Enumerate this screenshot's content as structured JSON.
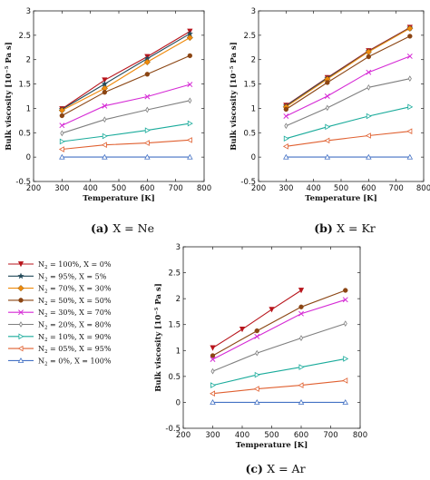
{
  "chart_data": [
    {
      "type": "line",
      "caption_letter": "(a)",
      "caption_text": "X = Ne",
      "xlabel": "Temperature [K]",
      "ylabel": "Bulk viscosity [10⁻⁵ Pa s]",
      "xlim": [
        200,
        800
      ],
      "ylim": [
        -0.5,
        3
      ],
      "xticks": [
        200,
        300,
        400,
        500,
        600,
        700,
        800
      ],
      "yticks": [
        -0.5,
        0,
        0.5,
        1,
        1.5,
        2,
        2.5,
        3
      ],
      "x": [
        300,
        450,
        600,
        750
      ],
      "series": [
        {
          "series_index": 0,
          "values": [
            0.99,
            1.58,
            2.06,
            2.58
          ]
        },
        {
          "series_index": 1,
          "values": [
            0.98,
            1.5,
            2.02,
            2.53
          ]
        },
        {
          "series_index": 2,
          "values": [
            0.96,
            1.41,
            1.95,
            2.45
          ]
        },
        {
          "series_index": 3,
          "values": [
            0.85,
            1.33,
            1.7,
            2.08
          ]
        },
        {
          "series_index": 4,
          "values": [
            0.65,
            1.05,
            1.24,
            1.49
          ]
        },
        {
          "series_index": 5,
          "values": [
            0.49,
            0.77,
            0.97,
            1.16
          ]
        },
        {
          "series_index": 6,
          "values": [
            0.32,
            0.43,
            0.55,
            0.69
          ]
        },
        {
          "series_index": 7,
          "values": [
            0.16,
            0.25,
            0.29,
            0.35
          ]
        },
        {
          "series_index": 8,
          "values": [
            0.0,
            0.0,
            0.0,
            0.0
          ]
        }
      ]
    },
    {
      "type": "line",
      "caption_letter": "(b)",
      "caption_text": "X = Kr",
      "xlabel": "Temperature [K]",
      "ylabel": "Bulk viscosity [10⁻⁵ Pa s]",
      "xlim": [
        200,
        800
      ],
      "ylim": [
        -0.5,
        3
      ],
      "xticks": [
        200,
        300,
        400,
        500,
        600,
        700,
        800
      ],
      "yticks": [
        -0.5,
        0,
        0.5,
        1,
        1.5,
        2,
        2.5,
        3
      ],
      "x": [
        300,
        450,
        600,
        750
      ],
      "series": [
        {
          "series_index": 0,
          "values": [
            1.06,
            1.63,
            2.18,
            2.66
          ]
        },
        {
          "series_index": 1,
          "values": [
            1.05,
            1.62,
            2.17,
            2.65
          ]
        },
        {
          "series_index": 2,
          "values": [
            1.03,
            1.6,
            2.16,
            2.64
          ]
        },
        {
          "series_index": 3,
          "values": [
            0.98,
            1.53,
            2.06,
            2.48
          ]
        },
        {
          "series_index": 4,
          "values": [
            0.84,
            1.25,
            1.74,
            2.07
          ]
        },
        {
          "series_index": 5,
          "values": [
            0.64,
            1.01,
            1.43,
            1.61
          ]
        },
        {
          "series_index": 6,
          "values": [
            0.38,
            0.62,
            0.84,
            1.03
          ]
        },
        {
          "series_index": 7,
          "values": [
            0.22,
            0.34,
            0.44,
            0.53
          ]
        },
        {
          "series_index": 8,
          "values": [
            0.0,
            0.0,
            0.0,
            0.0
          ]
        }
      ]
    },
    {
      "type": "line",
      "caption_letter": "(c)",
      "caption_text": "X = Ar",
      "xlabel": "Temperature [K]",
      "ylabel": "Bulk viscosity [10⁻⁵ Pa s]",
      "xlim": [
        200,
        800
      ],
      "ylim": [
        -0.5,
        3
      ],
      "xticks": [
        200,
        300,
        400,
        500,
        600,
        700,
        800
      ],
      "yticks": [
        -0.5,
        0,
        0.5,
        1,
        1.5,
        2,
        2.5,
        3
      ],
      "series": [
        {
          "series_index": 0,
          "x": [
            300,
            400,
            500,
            600
          ],
          "values": [
            1.05,
            1.41,
            1.79,
            2.16
          ]
        },
        {
          "series_index": 3,
          "x": [
            300,
            450,
            600,
            750
          ],
          "values": [
            0.9,
            1.38,
            1.84,
            2.16
          ]
        },
        {
          "series_index": 4,
          "x": [
            300,
            450,
            600,
            750
          ],
          "values": [
            0.83,
            1.27,
            1.71,
            1.98
          ]
        },
        {
          "series_index": 5,
          "x": [
            300,
            450,
            600,
            750
          ],
          "values": [
            0.6,
            0.95,
            1.24,
            1.52
          ]
        },
        {
          "series_index": 6,
          "x": [
            300,
            450,
            600,
            750
          ],
          "values": [
            0.33,
            0.53,
            0.68,
            0.84
          ]
        },
        {
          "series_index": 7,
          "x": [
            300,
            450,
            600,
            750
          ],
          "values": [
            0.17,
            0.26,
            0.33,
            0.42
          ]
        },
        {
          "series_index": 8,
          "x": [
            300,
            450,
            600,
            750
          ],
          "values": [
            0.0,
            0.0,
            0.0,
            0.0
          ]
        }
      ]
    }
  ],
  "legend": {
    "placement": "left of panel (c)",
    "entries": [
      {
        "n2": "100%",
        "x": "0%",
        "color": "#b8151c",
        "marker": "triangle-down"
      },
      {
        "n2": "95%",
        "x": "5%",
        "color": "#234a5a",
        "marker": "star"
      },
      {
        "n2": "70%",
        "x": "30%",
        "color": "#ef8a0c",
        "marker": "diamond"
      },
      {
        "n2": "50%",
        "x": "50%",
        "color": "#8b4513",
        "marker": "circle"
      },
      {
        "n2": "30%",
        "x": "70%",
        "color": "#d52ad5",
        "marker": "x"
      },
      {
        "n2": "20%",
        "x": "80%",
        "color": "#7f7f7f",
        "marker": "thin-diamond"
      },
      {
        "n2": "10%",
        "x": "90%",
        "color": "#1aab9b",
        "marker": "triangle-right"
      },
      {
        "n2": "05%",
        "x": "95%",
        "color": "#e06030",
        "marker": "triangle-left"
      },
      {
        "n2": " 0%",
        "x": "100%",
        "color": "#4472c4",
        "marker": "triangle-up"
      }
    ]
  }
}
